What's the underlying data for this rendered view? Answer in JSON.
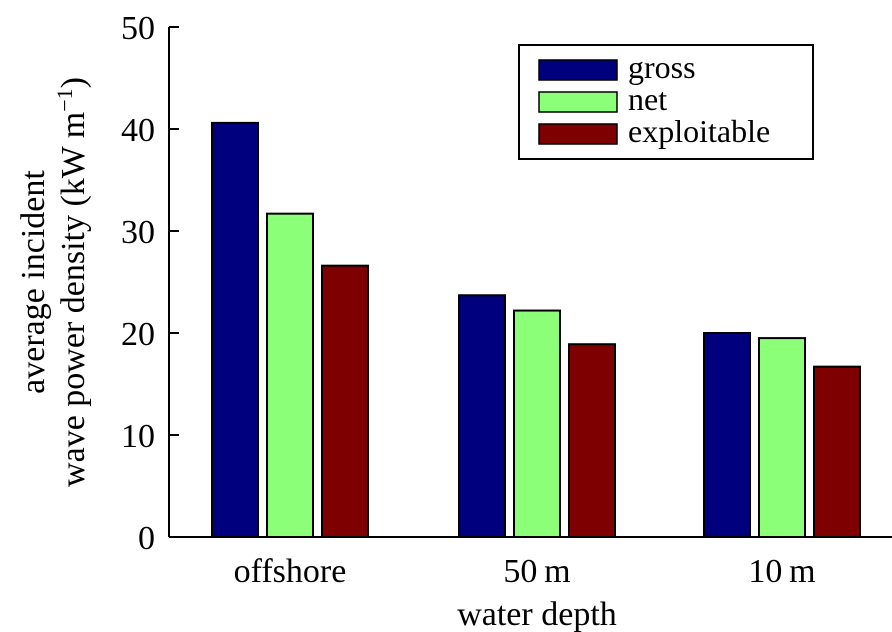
{
  "chart_data": {
    "type": "bar",
    "title": "",
    "xlabel": "water depth",
    "ylabel_line1": "average incident",
    "ylabel_line2": "wave power density (kW m",
    "ylabel_sup": "−1",
    "ylabel_close": ")",
    "ylim": [
      0,
      50
    ],
    "yticks": [
      0,
      10,
      20,
      30,
      40,
      50
    ],
    "categories": [
      "offshore",
      "50 m",
      "10 m"
    ],
    "series": [
      {
        "name": "gross",
        "color": "#00007f",
        "values": [
          40.6,
          23.7,
          20.0
        ]
      },
      {
        "name": "net",
        "color": "#8cff78",
        "values": [
          31.7,
          22.2,
          19.5
        ]
      },
      {
        "name": "exploitable",
        "color": "#7f0000",
        "values": [
          26.6,
          18.9,
          16.7
        ]
      }
    ],
    "legend_position": "top-right",
    "grid": false
  }
}
